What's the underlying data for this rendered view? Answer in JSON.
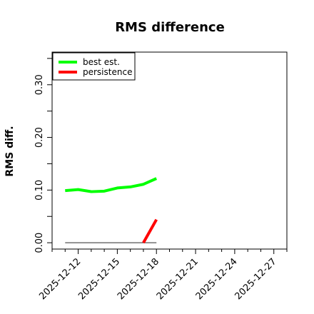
{
  "chart_data": {
    "type": "line",
    "title": "RMS difference",
    "xlabel": "",
    "ylabel": "RMS diff.",
    "x_ticks": [
      "2025-12-12",
      "2025-12-15",
      "2025-12-18",
      "2025-12-21",
      "2025-12-24",
      "2025-12-27"
    ],
    "y_ticks": [
      "0.00",
      "0.10",
      "0.20",
      "0.30"
    ],
    "y_tick_values": [
      0.0,
      0.1,
      0.2,
      0.3
    ],
    "xlim": [
      "2025-12-10",
      "2025-12-28"
    ],
    "ylim": [
      -0.012,
      0.362
    ],
    "grid": false,
    "legend_position": "top-left",
    "series": [
      {
        "name": "best est.",
        "color": "#00ff00",
        "points": [
          {
            "x": "2025-12-11",
            "y": 0.099
          },
          {
            "x": "2025-12-12",
            "y": 0.101
          },
          {
            "x": "2025-12-13",
            "y": 0.097
          },
          {
            "x": "2025-12-14",
            "y": 0.098
          },
          {
            "x": "2025-12-15",
            "y": 0.104
          },
          {
            "x": "2025-12-16",
            "y": 0.106
          },
          {
            "x": "2025-12-17",
            "y": 0.111
          },
          {
            "x": "2025-12-18",
            "y": 0.122
          }
        ]
      },
      {
        "name": "persistence",
        "color": "#ff0000",
        "points": [
          {
            "x": "2025-12-17",
            "y": 0.0
          },
          {
            "x": "2025-12-18",
            "y": 0.044
          }
        ]
      }
    ],
    "reference_line": {
      "color": "#555555",
      "points": [
        {
          "x": "2025-12-11",
          "y": 0.0
        },
        {
          "x": "2025-12-18",
          "y": 0.0
        }
      ]
    }
  }
}
